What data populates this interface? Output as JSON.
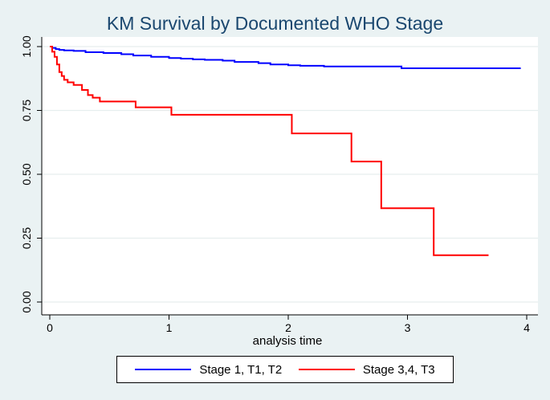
{
  "chart_data": {
    "type": "line",
    "subtype": "step",
    "title": "KM Survival by Documented WHO Stage",
    "xlabel": "analysis time",
    "ylabel": "",
    "xlim": [
      0,
      4
    ],
    "ylim": [
      0,
      1
    ],
    "xticks": [
      0,
      1,
      2,
      3,
      4
    ],
    "xtick_labels": [
      "0",
      "1",
      "2",
      "3",
      "4"
    ],
    "yticks": [
      0,
      0.25,
      0.5,
      0.75,
      1
    ],
    "ytick_labels": [
      "0.00",
      "0.25",
      "0.50",
      "0.75",
      "1.00"
    ],
    "grid": "horizontal",
    "legend_position": "bottom",
    "series": [
      {
        "name": "Stage 1, T1, T2",
        "color": "#0000ff",
        "x": [
          0,
          0.02,
          0.05,
          0.08,
          0.12,
          0.2,
          0.3,
          0.45,
          0.6,
          0.7,
          0.85,
          1.0,
          1.1,
          1.2,
          1.3,
          1.45,
          1.55,
          1.75,
          1.85,
          2.0,
          2.1,
          2.3,
          2.95,
          3.95
        ],
        "y": [
          1.0,
          0.995,
          0.99,
          0.987,
          0.985,
          0.983,
          0.978,
          0.975,
          0.97,
          0.965,
          0.96,
          0.955,
          0.953,
          0.95,
          0.948,
          0.945,
          0.94,
          0.935,
          0.93,
          0.927,
          0.925,
          0.922,
          0.915,
          0.915
        ]
      },
      {
        "name": "Stage 3,4, T3",
        "color": "#ff0000",
        "x": [
          0,
          0.02,
          0.04,
          0.06,
          0.08,
          0.1,
          0.12,
          0.15,
          0.2,
          0.27,
          0.32,
          0.36,
          0.42,
          0.72,
          1.02,
          2.03,
          2.53,
          2.78,
          3.22,
          3.68
        ],
        "y": [
          1.0,
          0.98,
          0.96,
          0.93,
          0.9,
          0.885,
          0.87,
          0.86,
          0.85,
          0.83,
          0.81,
          0.8,
          0.785,
          0.762,
          0.733,
          0.66,
          0.55,
          0.367,
          0.183,
          0.183
        ]
      }
    ]
  }
}
